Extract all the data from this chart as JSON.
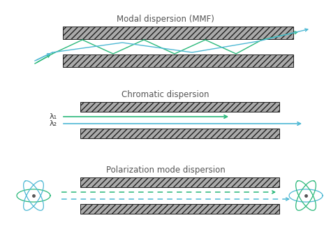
{
  "title1": "Modal dispersion (MMF)",
  "title2": "Chromatic dispersion",
  "title3": "Polarization mode dispersion",
  "green_color": "#2ab87a",
  "blue_color": "#4db8d4",
  "lambda1_label": "λ₁",
  "lambda2_label": "λ₂",
  "hatch_facecolor": "#aaaaaa",
  "hatch_pattern": "////",
  "bar_edge_color": "#222222"
}
